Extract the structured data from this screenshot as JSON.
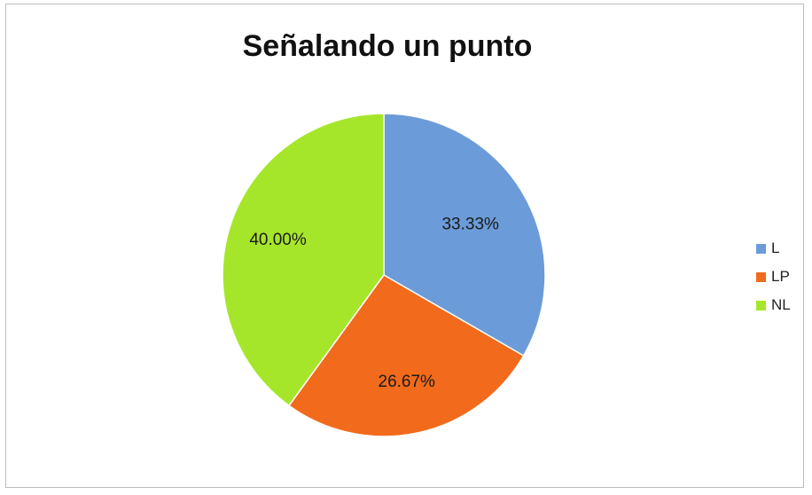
{
  "chart_data": {
    "type": "pie",
    "title": "Señalando un punto",
    "slices": [
      {
        "name": "L",
        "value": 33.33,
        "label": "33.33%",
        "color": "#6b9bd8"
      },
      {
        "name": "LP",
        "value": 26.67,
        "label": "26.67%",
        "color": "#f26a1b"
      },
      {
        "name": "NL",
        "value": 40.0,
        "label": "40.00%",
        "color": "#a6e62a"
      }
    ],
    "legend_position": "right"
  }
}
